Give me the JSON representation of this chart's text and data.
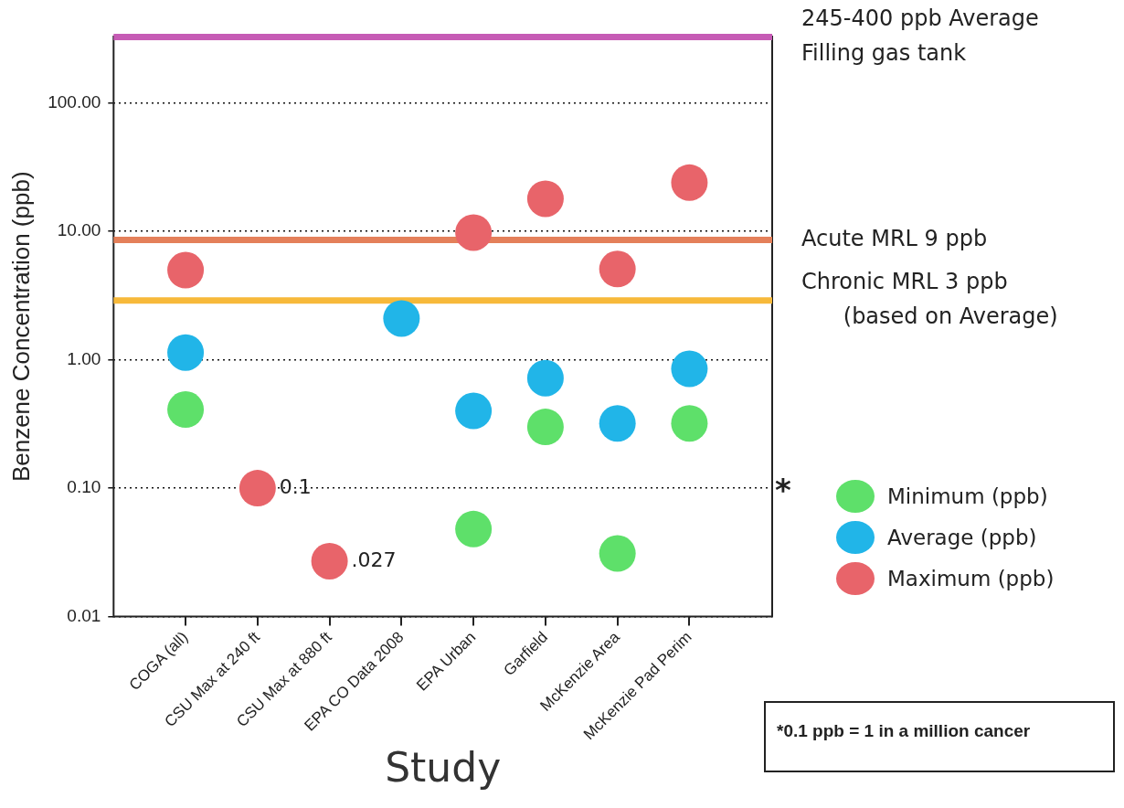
{
  "chart_data": {
    "type": "scatter",
    "xlabel": "Study",
    "ylabel": "Benzene Concentration (ppb)",
    "categories": [
      "COGA (all)",
      "CSU Max at 240 ft",
      "CSU Max at 880 ft",
      "EPA CO Data 2008",
      "EPA Urban",
      "Garfield",
      "McKenzie Area",
      "McKenzie Pad Perim"
    ],
    "series": [
      {
        "name": "Minimum (ppb)",
        "color": "#5ee06a",
        "values": [
          0.41,
          null,
          null,
          null,
          0.048,
          0.3,
          0.031,
          0.32
        ]
      },
      {
        "name": "Average (ppb)",
        "color": "#21b5e8",
        "values": [
          1.14,
          null,
          null,
          2.1,
          0.4,
          0.72,
          0.32,
          0.85
        ]
      },
      {
        "name": "Maximum (ppb)",
        "color": "#e8646a",
        "values": [
          5.0,
          0.1,
          0.027,
          null,
          9.8,
          18,
          5.1,
          24
        ],
        "value_labels": [
          null,
          "0.1",
          ".027",
          null,
          null,
          null,
          null,
          null
        ]
      }
    ],
    "log": "y",
    "ylim": [
      0.01,
      330
    ],
    "yticks": [
      {
        "value": 0.01,
        "label": "0.01"
      },
      {
        "value": 0.1,
        "label": "0.10"
      },
      {
        "value": 1,
        "label": "1.00"
      },
      {
        "value": 10,
        "label": "10.00"
      },
      {
        "value": 100,
        "label": "100.00"
      }
    ],
    "grid": "y",
    "marker": "circle",
    "legend": "right",
    "ref_lines": [
      {
        "axis": "y",
        "value": 327,
        "label": "245-400 ppb Average\nFilling gas tank",
        "color": "#c65bb5"
      },
      {
        "axis": "y",
        "value": 8.6,
        "label": "Acute MRL 9 ppb",
        "color": "#e4805a"
      },
      {
        "axis": "y",
        "value": 2.9,
        "label": "Chronic MRL 3 ppb\n      (based on Average)",
        "color": "#f7b93a"
      }
    ],
    "annotations": [
      "*",
      "*0.1 ppb = 1 in a million cancer"
    ]
  }
}
